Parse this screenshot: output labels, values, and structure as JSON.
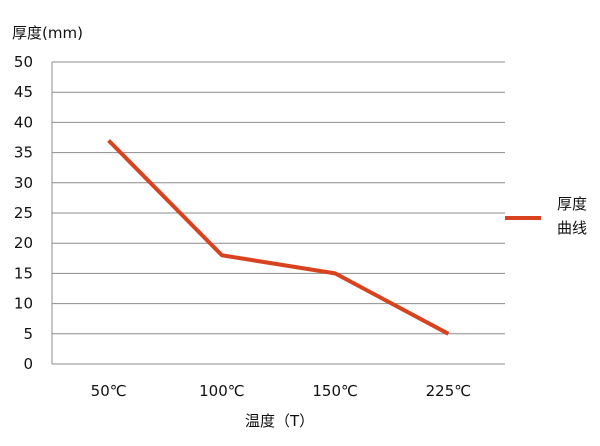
{
  "chart_data": {
    "type": "line",
    "categories": [
      "50℃",
      "100℃",
      "150℃",
      "225℃"
    ],
    "series": [
      {
        "name": "厚度曲线",
        "values": [
          37,
          18,
          15,
          5
        ],
        "color": "#d9421e"
      }
    ],
    "ylabel": "厚度(mm)",
    "xlabel": "温度（T）",
    "ylim": [
      0,
      50
    ],
    "yticks": [
      0,
      5,
      10,
      15,
      20,
      25,
      30,
      35,
      40,
      45,
      50
    ],
    "grid": "horizontal",
    "legend": "right",
    "legend_lines": [
      "厚度",
      "曲线"
    ],
    "grid_color": "#8c8c8c"
  }
}
